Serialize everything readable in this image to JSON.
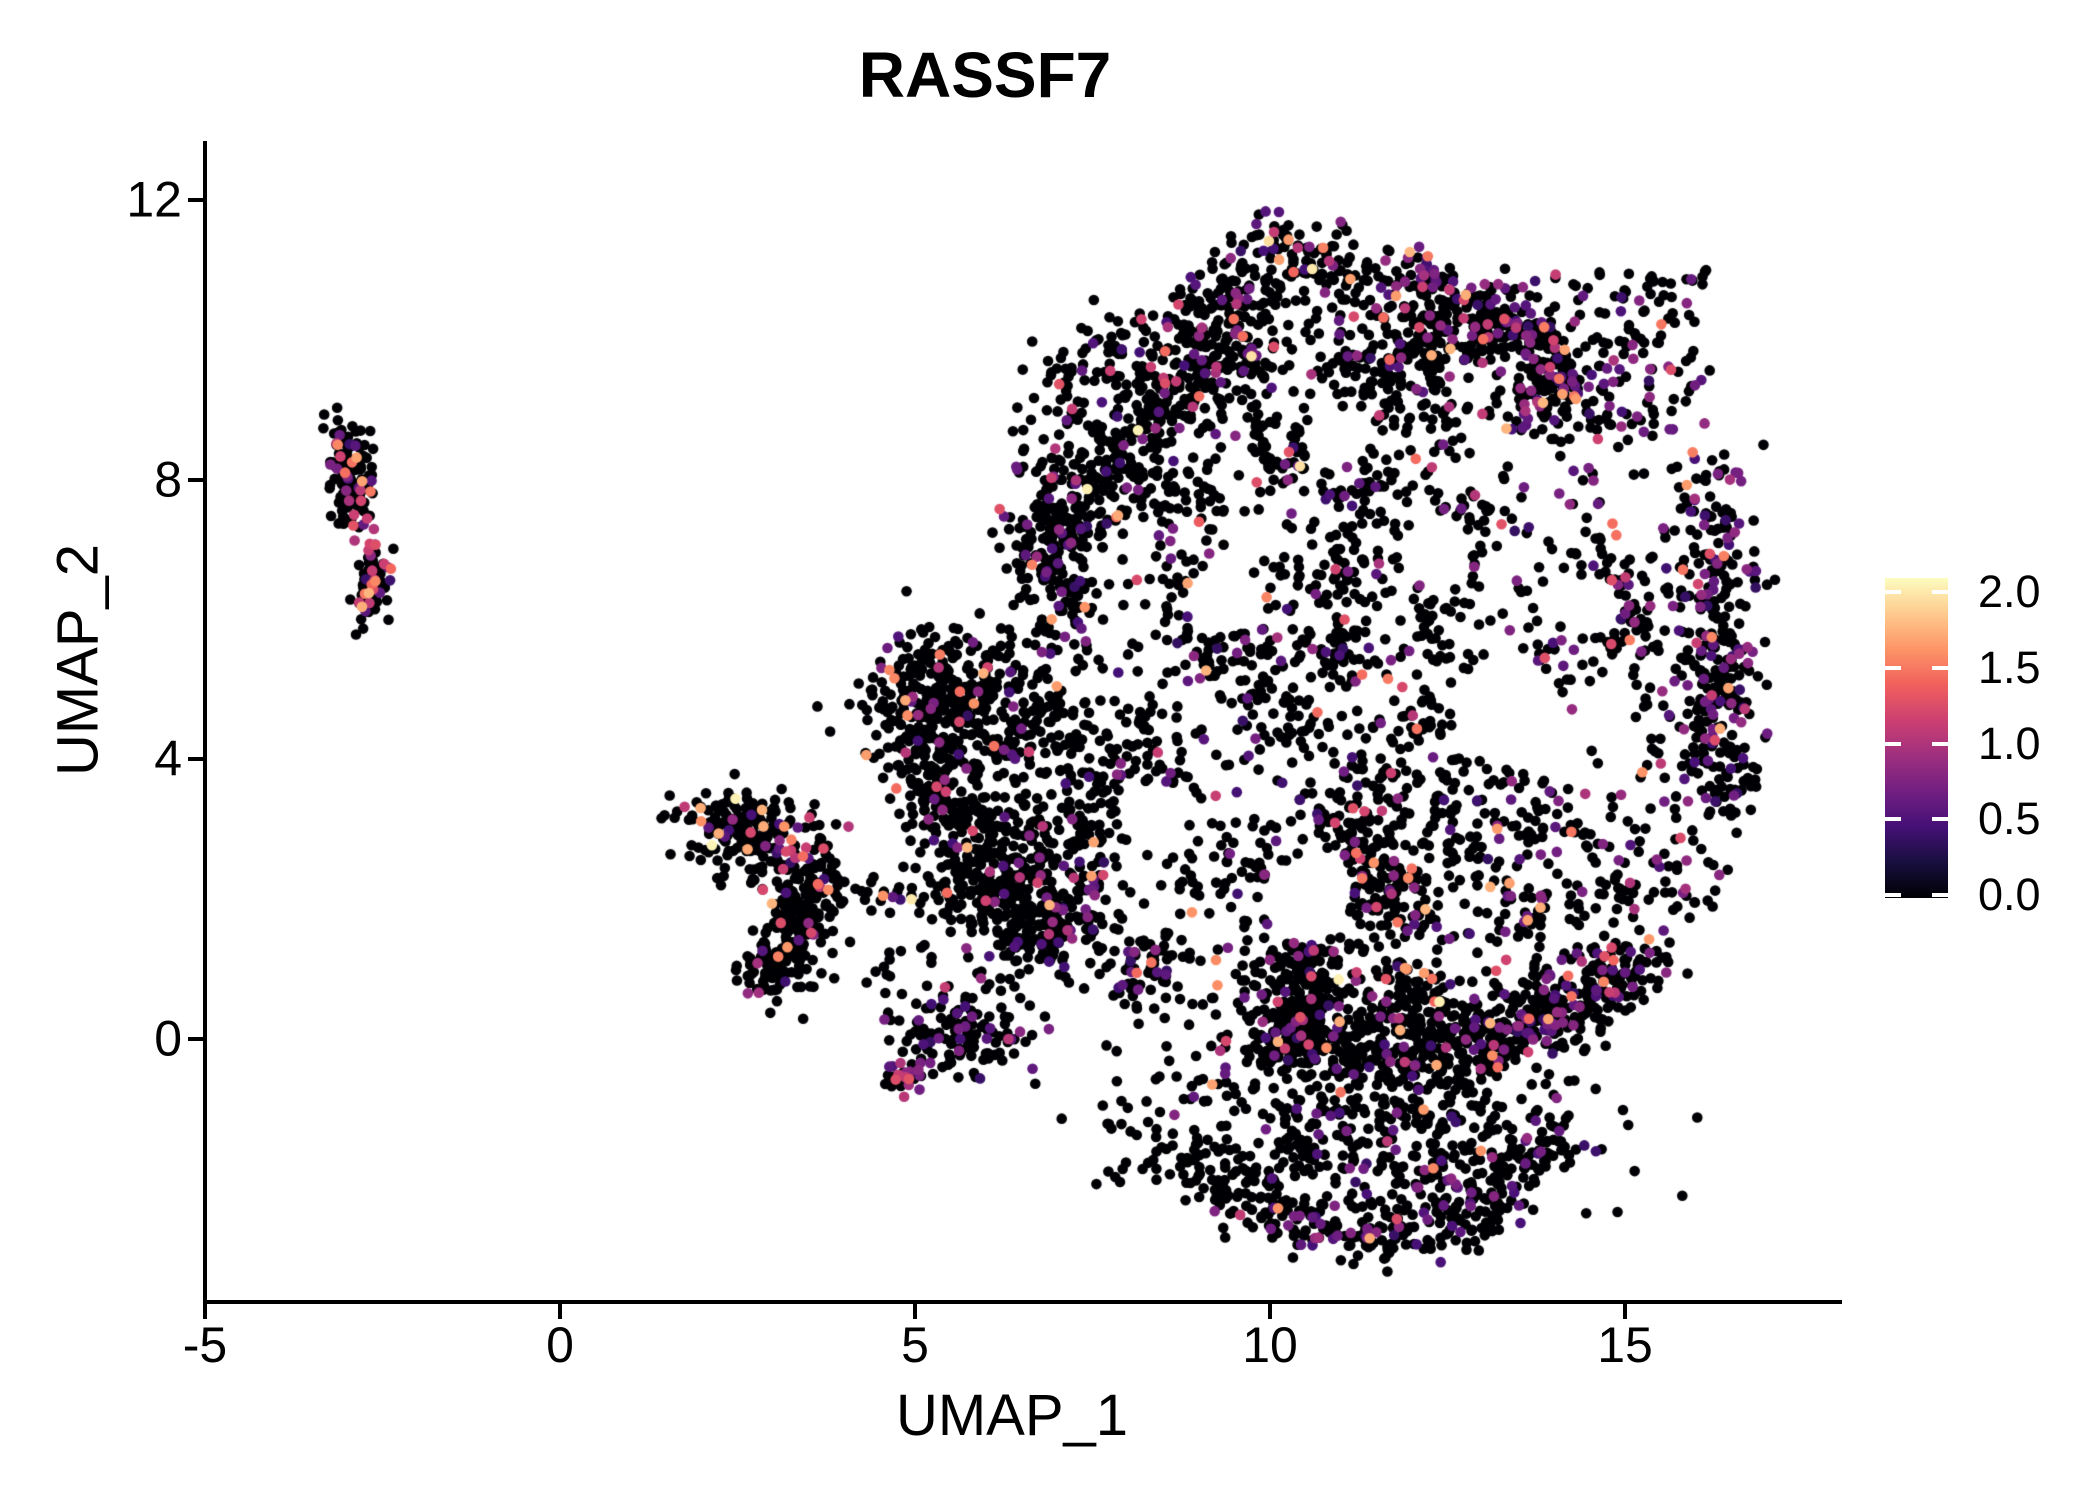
{
  "title": "RASSF7",
  "chart_data": {
    "type": "scatter",
    "title": "RASSF7",
    "xlabel": "UMAP_1",
    "ylabel": "UMAP_2",
    "x_ticks": [
      -5,
      0,
      5,
      10,
      15
    ],
    "y_ticks": [
      0,
      4,
      8,
      12
    ],
    "xlim": [
      -5.1,
      18.1
    ],
    "ylim": [
      -3.8,
      13.0
    ],
    "grid": false,
    "legend_position": "right",
    "marker_radius_px": 5.3,
    "seed": 42,
    "colorbar": {
      "labels": [
        "2.0",
        "1.5",
        "1.0",
        "0.5",
        "0.0"
      ],
      "label_values": [
        2.0,
        1.5,
        1.0,
        0.5,
        0.0
      ],
      "vmin": 0.0,
      "vmax": 2.0,
      "colormap": "magma",
      "stops": [
        "#000004",
        "#180f3e",
        "#451077",
        "#721f81",
        "#9f2f7f",
        "#cd4071",
        "#f1605d",
        "#fd9567",
        "#feca8d",
        "#fcfdbf"
      ]
    },
    "value_bins": [
      [
        0,
        0
      ],
      [
        0.35,
        0.85
      ],
      [
        0.9,
        1.25
      ],
      [
        1.35,
        1.7
      ],
      [
        1.85,
        2.0
      ]
    ],
    "clusters": [
      {
        "name": "left-streak-upper",
        "kind": "gauss",
        "n": 118,
        "cx": -2.97,
        "cy": 8.05,
        "sx": 0.16,
        "sy": 0.42,
        "rot": 8,
        "weights": [
          0.8,
          0.07,
          0.07,
          0.06,
          0
        ]
      },
      {
        "name": "left-streak-lower",
        "kind": "gauss",
        "n": 72,
        "cx": -2.63,
        "cy": 6.5,
        "sx": 0.12,
        "sy": 0.27,
        "rot": -12,
        "weights": [
          0.76,
          0.14,
          0.06,
          0.04,
          0
        ]
      },
      {
        "name": "left-streak-bridge",
        "kind": "band",
        "n": 9,
        "x1": -2.86,
        "y1": 7.35,
        "x2": -2.68,
        "y2": 6.95,
        "sigma": 0.07,
        "weights": [
          0.35,
          0.25,
          0.4,
          0,
          0
        ]
      },
      {
        "name": "mid-cluster-top",
        "kind": "gauss",
        "n": 195,
        "cx": 2.55,
        "cy": 2.95,
        "sx": 0.48,
        "sy": 0.3,
        "rot": -12,
        "weights": [
          0.885,
          0.06,
          0.025,
          0.025,
          0.005
        ]
      },
      {
        "name": "mid-cluster-arm",
        "kind": "gauss",
        "n": 195,
        "cx": 3.32,
        "cy": 1.75,
        "sx": 0.23,
        "sy": 0.58,
        "rot": -15,
        "weights": [
          0.885,
          0.075,
          0.02,
          0.02,
          0
        ]
      },
      {
        "name": "mid-cluster-hook",
        "kind": "gauss",
        "n": 45,
        "cx": 3.05,
        "cy": 0.95,
        "sx": 0.26,
        "sy": 0.16,
        "rot": 0,
        "weights": [
          0.9,
          0.08,
          0.02,
          0,
          0
        ]
      },
      {
        "name": "mid-trail",
        "kind": "band",
        "n": 58,
        "x1": 3.45,
        "y1": 2.15,
        "x2": 6.4,
        "y2": 2.0,
        "sigma": 0.17,
        "weights": [
          0.9,
          0.04,
          0.03,
          0.03,
          0
        ]
      },
      {
        "name": "mid-sparse-below",
        "kind": "box",
        "n": 26,
        "x1": 3.5,
        "x2": 6.2,
        "y1": 0.55,
        "y2": 1.85,
        "weights": [
          0.92,
          0.08,
          0,
          0,
          0
        ]
      },
      {
        "name": "small-cluster",
        "kind": "gauss",
        "n": 128,
        "cx": 5.68,
        "cy": 0.02,
        "sx": 0.5,
        "sy": 0.33,
        "rot": -8,
        "weights": [
          0.82,
          0.14,
          0.02,
          0.02,
          0
        ]
      },
      {
        "name": "tiny-clump",
        "kind": "gauss",
        "n": 26,
        "cx": 4.85,
        "cy": -0.55,
        "sx": 0.15,
        "sy": 0.12,
        "rot": 0,
        "weights": [
          0.55,
          0.3,
          0.15,
          0,
          0
        ]
      },
      {
        "name": "wedge",
        "kind": "gauss",
        "n": 330,
        "cx": 5.4,
        "cy": 4.85,
        "sx": 0.62,
        "sy": 0.5,
        "rot": 28,
        "weights": [
          0.94,
          0.04,
          0.005,
          0.015,
          0
        ]
      },
      {
        "name": "left-edge-band",
        "kind": "band",
        "n": 320,
        "x1": 4.95,
        "y1": 4.15,
        "x2": 6.65,
        "y2": 1.35,
        "sigma": 0.38,
        "weights": [
          0.91,
          0.06,
          0.02,
          0.01,
          0
        ]
      },
      {
        "name": "top-left-edge",
        "kind": "band",
        "n": 500,
        "x1": 6.55,
        "y1": 6.7,
        "x2": 10.25,
        "y2": 11.4,
        "sigma": 0.34,
        "weights": [
          0.89,
          0.07,
          0.025,
          0.013,
          0.002
        ]
      },
      {
        "name": "top-right-edge",
        "kind": "band",
        "n": 225,
        "x1": 10.3,
        "y1": 11.4,
        "x2": 14.3,
        "y2": 9.55,
        "sigma": 0.3,
        "weights": [
          0.83,
          0.12,
          0.03,
          0.02,
          0
        ]
      },
      {
        "name": "right-edge",
        "kind": "band",
        "n": 250,
        "x1": 16.2,
        "y1": 8.1,
        "x2": 16.45,
        "y2": 3.3,
        "sigma": 0.27,
        "weights": [
          0.72,
          0.21,
          0.045,
          0.025,
          0
        ]
      },
      {
        "name": "bottom-edge-left",
        "kind": "band",
        "n": 280,
        "x1": 9.75,
        "y1": 0.0,
        "x2": 13.1,
        "y2": -0.1,
        "sigma": 0.3,
        "weights": [
          0.86,
          0.1,
          0.02,
          0.02,
          0
        ]
      },
      {
        "name": "bottom-edge-right",
        "kind": "band",
        "n": 190,
        "x1": 13.1,
        "y1": 0.0,
        "x2": 15.55,
        "y2": 1.15,
        "sigma": 0.28,
        "weights": [
          0.83,
          0.13,
          0.02,
          0.02,
          0
        ]
      },
      {
        "name": "purple-chain",
        "kind": "band",
        "n": 52,
        "x1": 11.85,
        "y1": 11.25,
        "x2": 13.75,
        "y2": 9.95,
        "sigma": 0.11,
        "weights": [
          0.4,
          0.33,
          0.2,
          0.07,
          0
        ]
      },
      {
        "name": "purple-chain-ext",
        "kind": "band",
        "n": 26,
        "x1": 13.75,
        "y1": 9.95,
        "x2": 14.85,
        "y2": 8.85,
        "sigma": 0.14,
        "weights": [
          0.62,
          0.25,
          0.1,
          0.03,
          0
        ]
      },
      {
        "name": "top-right-sparse",
        "kind": "box",
        "n": 140,
        "x1": 13.5,
        "x2": 16.2,
        "y1": 8.7,
        "y2": 11.0,
        "weights": [
          0.8,
          0.15,
          0.04,
          0.01,
          0
        ]
      },
      {
        "name": "main-blob",
        "kind": "blob",
        "cx": 11.25,
        "cy": 4.5,
        "rx": 5.35,
        "ry": 7.0,
        "harmonics": [
          [
            2,
            0.05,
            1.2
          ],
          [
            3,
            0.045,
            0.5
          ],
          [
            5,
            0.035,
            2.8
          ]
        ],
        "dip": {
          "deg": 268,
          "amp": 0.33,
          "width": 45
        },
        "singles": 1150,
        "seeds": 95,
        "seed_pts": [
          14,
          34
        ],
        "seed_sigma": 0.3,
        "weights": [
          0.875,
          0.085,
          0.024,
          0.014,
          0.002
        ],
        "right_x": 13.2,
        "right_weights": [
          0.74,
          0.195,
          0.04,
          0.025,
          0
        ]
      },
      {
        "name": "bottom-lobe",
        "kind": "gauss",
        "n": 470,
        "cx": 11.5,
        "cy": -1.3,
        "sx": 1.5,
        "sy": 0.72,
        "rot": 0,
        "weights": [
          0.9,
          0.085,
          0.01,
          0.005,
          0
        ]
      },
      {
        "name": "lobe-arc-1",
        "kind": "band",
        "n": 85,
        "x1": 8.95,
        "y1": -1.95,
        "x2": 10.6,
        "y2": -2.8,
        "sigma": 0.22,
        "weights": [
          0.88,
          0.1,
          0.01,
          0.01,
          0
        ]
      },
      {
        "name": "lobe-arc-2",
        "kind": "band",
        "n": 110,
        "x1": 10.6,
        "y1": -2.85,
        "x2": 12.7,
        "y2": -2.7,
        "sigma": 0.22,
        "weights": [
          0.88,
          0.1,
          0.01,
          0.01,
          0
        ]
      },
      {
        "name": "lobe-arc-3",
        "kind": "band",
        "n": 115,
        "x1": 12.7,
        "y1": -2.6,
        "x2": 14.05,
        "y2": -1.35,
        "sigma": 0.22,
        "weights": [
          0.86,
          0.11,
          0.015,
          0.015,
          0
        ]
      },
      {
        "name": "below-blob-sparse",
        "kind": "box",
        "n": 40,
        "x1": 7.4,
        "x2": 9.4,
        "y1": -2.1,
        "y2": -0.5,
        "weights": [
          0.95,
          0.05,
          0,
          0,
          0
        ]
      },
      {
        "name": "left-of-blob-sparse",
        "kind": "box",
        "n": 30,
        "x1": 5.5,
        "x2": 7.0,
        "y1": 1.5,
        "y2": 4.3,
        "weights": [
          0.93,
          0.07,
          0,
          0,
          0
        ]
      }
    ],
    "voids": [
      {
        "x": 13.35,
        "y": 4.7,
        "r": 0.8
      },
      {
        "x": 10.5,
        "y": 1.95,
        "r": 0.6
      },
      {
        "x": 9.35,
        "y": 6.3,
        "r": 0.55
      },
      {
        "x": 12.3,
        "y": 6.95,
        "r": 0.5
      },
      {
        "x": 8.35,
        "y": 3.2,
        "r": 0.5
      },
      {
        "x": 14.5,
        "y": 6.2,
        "r": 0.45
      },
      {
        "x": 10.9,
        "y": 8.6,
        "r": 0.45
      }
    ],
    "extra_points": [
      {
        "x": 4.95,
        "y": 2.0,
        "v": 1.92
      },
      {
        "x": 4.55,
        "y": 2.05,
        "v": 1.55
      },
      {
        "x": 4.64,
        "y": 5.28,
        "v": 1.5
      },
      {
        "x": 4.71,
        "y": 5.16,
        "v": 1.5
      },
      {
        "x": 5.35,
        "y": 5.5,
        "v": 1.45
      },
      {
        "x": -3.13,
        "y": 8.5,
        "v": 1.5
      },
      {
        "x": -2.6,
        "y": 6.55,
        "v": 1.5
      },
      {
        "x": -2.9,
        "y": 7.5,
        "v": 1.1
      },
      {
        "x": -2.74,
        "y": 6.12,
        "v": 0.55
      },
      {
        "x": 12.97,
        "y": -1.6,
        "v": 1.55
      },
      {
        "x": 12.3,
        "y": -1.85,
        "v": 1.5
      },
      {
        "x": 13.63,
        "y": 1.7,
        "v": 1.6
      },
      {
        "x": 9.0,
        "y": 7.4,
        "v": 1.3
      },
      {
        "x": 7.75,
        "y": 9.56,
        "v": 1.1
      },
      {
        "x": 16.95,
        "y": 8.5,
        "v": 0
      },
      {
        "x": 15.95,
        "y": 10.85,
        "v": 0
      },
      {
        "x": 17.0,
        "y": 6.5,
        "v": 0
      }
    ]
  }
}
